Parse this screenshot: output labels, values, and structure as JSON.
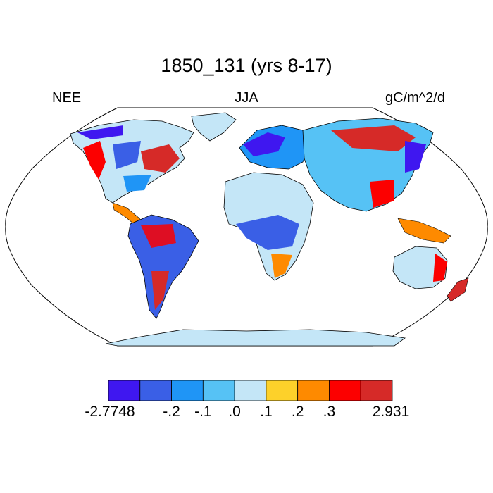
{
  "title": "1850_131 (yrs 8-17)",
  "left_label": "NEE",
  "center_label": "JJA",
  "right_label": "gC/m^2/d",
  "colorbar": {
    "colors": [
      "#3f17f0",
      "#3a5fe6",
      "#1f95f6",
      "#56c2f5",
      "#c4e6f7",
      "#fdd12a",
      "#fe8a00",
      "#fc0000",
      "#d62a28"
    ],
    "labels": [
      "-2.7748",
      "-.2",
      "-.1",
      ".0",
      ".1",
      ".2",
      ".3",
      "2.931"
    ],
    "min": -2.7748,
    "max": 2.931
  },
  "map": {
    "projection": "robinson",
    "ocean_color": "#ffffff",
    "outline_color": "#000000"
  }
}
